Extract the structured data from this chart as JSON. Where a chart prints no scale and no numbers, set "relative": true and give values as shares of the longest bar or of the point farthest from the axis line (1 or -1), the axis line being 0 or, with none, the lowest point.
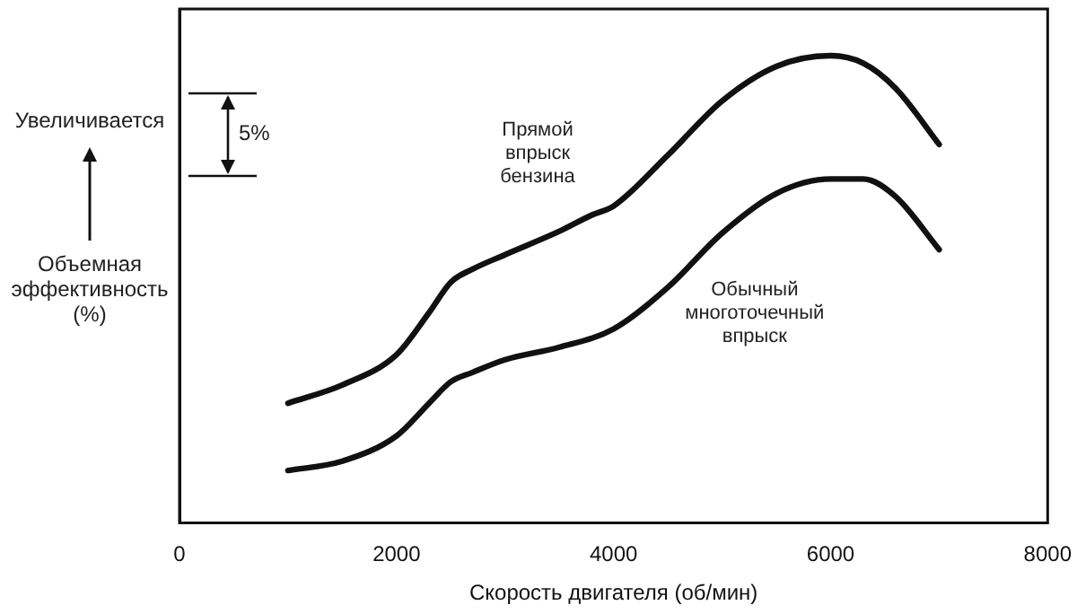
{
  "chart_data": {
    "type": "line",
    "relative": true,
    "xlabel": "Скорость двигателя (об/мин)",
    "ylabel": "Объемная эффективность (%)",
    "annotations": [
      "Увеличивается",
      "5%"
    ],
    "xlim": [
      0,
      8000
    ],
    "xticks": [
      0,
      2000,
      4000,
      6000,
      8000
    ],
    "grid": false,
    "legend": false,
    "marker": "none",
    "line_style": "solid",
    "series": [
      {
        "name": "Прямой впрыск бензина",
        "color": "#111111",
        "x": [
          1000,
          1500,
          2000,
          2300,
          2500,
          2700,
          3000,
          3500,
          3800,
          4000,
          4500,
          5000,
          5500,
          6000,
          6300,
          6600,
          7000
        ],
        "values": [
          0.256,
          0.295,
          0.36,
          0.45,
          0.515,
          0.543,
          0.574,
          0.624,
          0.659,
          0.678,
          0.787,
          0.903,
          0.977,
          1,
          0.984,
          0.93,
          0.81
        ]
      },
      {
        "name": "Обычный многоточечный впрыск",
        "color": "#111111",
        "x": [
          1000,
          1500,
          2000,
          2300,
          2500,
          2700,
          3000,
          3500,
          4000,
          4500,
          5000,
          5500,
          6000,
          6300,
          6600,
          7000
        ],
        "values": [
          0.112,
          0.132,
          0.186,
          0.256,
          0.302,
          0.322,
          0.349,
          0.376,
          0.415,
          0.504,
          0.62,
          0.705,
          0.736,
          0.736,
          0.698,
          0.585
        ]
      }
    ]
  }
}
